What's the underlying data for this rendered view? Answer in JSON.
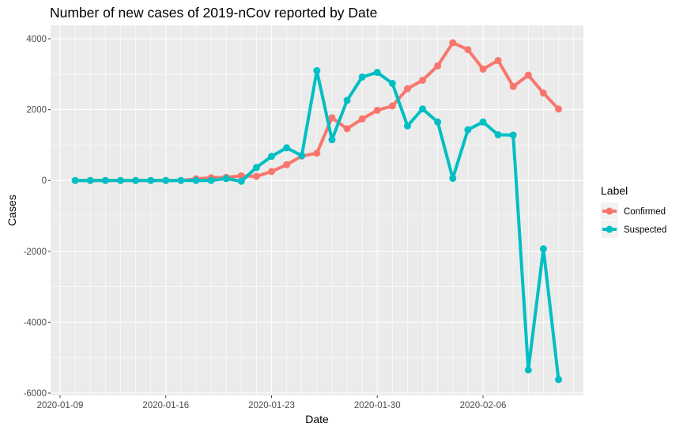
{
  "chart_data": {
    "type": "line",
    "title": "Number of new cases of 2019-nCov reported by Date",
    "xlabel": "Date",
    "ylabel": "Cases",
    "ylim": [
      -6000,
      4000
    ],
    "xlim": [
      "2020-01-09",
      "2020-02-12"
    ],
    "grid": true,
    "y_ticks": [
      4000,
      2000,
      0,
      -2000,
      -4000,
      -6000
    ],
    "y_tick_labels": [
      "4000",
      "2000",
      "0",
      "-2000",
      "-4000",
      "-6000"
    ],
    "x_ticks": [
      "2020-01-09",
      "2020-01-16",
      "2020-01-23",
      "2020-01-30",
      "2020-02-06"
    ],
    "x_tick_labels": [
      "2020-01-09",
      "2020-01-16",
      "2020-01-23",
      "2020-01-30",
      "2020-02-06"
    ],
    "legend": {
      "title": "Label",
      "position": "right"
    },
    "x": [
      "2020-01-10",
      "2020-01-11",
      "2020-01-12",
      "2020-01-13",
      "2020-01-14",
      "2020-01-15",
      "2020-01-16",
      "2020-01-17",
      "2020-01-18",
      "2020-01-19",
      "2020-01-20",
      "2020-01-21",
      "2020-01-22",
      "2020-01-23",
      "2020-01-24",
      "2020-01-25",
      "2020-01-26",
      "2020-01-27",
      "2020-01-28",
      "2020-01-29",
      "2020-01-30",
      "2020-01-31",
      "2020-02-01",
      "2020-02-02",
      "2020-02-03",
      "2020-02-04",
      "2020-02-05",
      "2020-02-06",
      "2020-02-07",
      "2020-02-08",
      "2020-02-09",
      "2020-02-10",
      "2020-02-11"
    ],
    "series": [
      {
        "name": "Confirmed",
        "color": "#F8766D",
        "values": [
          0,
          0,
          0,
          0,
          0,
          0,
          0,
          0,
          45,
          77,
          89,
          131,
          115,
          253,
          445,
          688,
          769,
          1771,
          1459,
          1737,
          1981,
          2102,
          2590,
          2829,
          3235,
          3887,
          3694,
          3143,
          3385,
          2652,
          2973,
          2467,
          2015
        ]
      },
      {
        "name": "Suspected",
        "color": "#00BFC4",
        "values": [
          0,
          0,
          0,
          0,
          0,
          0,
          0,
          0,
          0,
          0,
          54,
          -23,
          367,
          680,
          922,
          700,
          3100,
          1150,
          2260,
          2920,
          3050,
          2740,
          1540,
          2020,
          1650,
          60,
          1430,
          1650,
          1290,
          1280,
          -5350,
          -1930,
          -5620
        ]
      }
    ]
  }
}
